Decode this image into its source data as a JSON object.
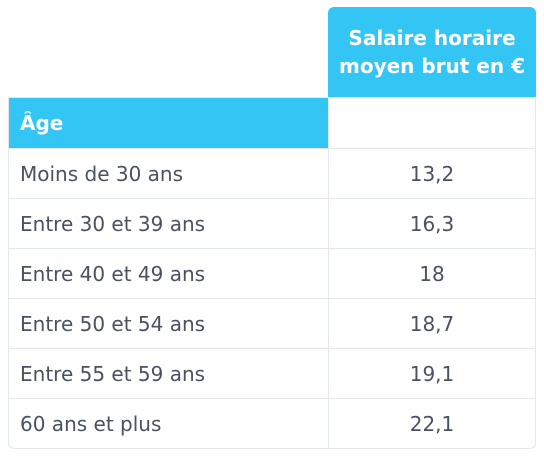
{
  "chart_data": {
    "type": "table",
    "columns": [
      "Âge",
      "Salaire horaire moyen brut en €"
    ],
    "value_header_lines": [
      "Salaire horaire",
      "moyen brut en €"
    ],
    "rows": [
      {
        "label": "Moins de 30 ans",
        "value": "13,2"
      },
      {
        "label": "Entre 30 et 39 ans",
        "value": "16,3"
      },
      {
        "label": "Entre 40 et 49 ans",
        "value": "18"
      },
      {
        "label": "Entre 50 et 54 ans",
        "value": "18,7"
      },
      {
        "label": "Entre 55 et 59 ans",
        "value": "19,1"
      },
      {
        "label": "60 ans et plus",
        "value": "22,1"
      }
    ],
    "colors": {
      "header_bg": "#33c6f4",
      "header_text": "#ffffff",
      "body_text": "#4a5160",
      "grid": "#e3e6ea"
    }
  }
}
